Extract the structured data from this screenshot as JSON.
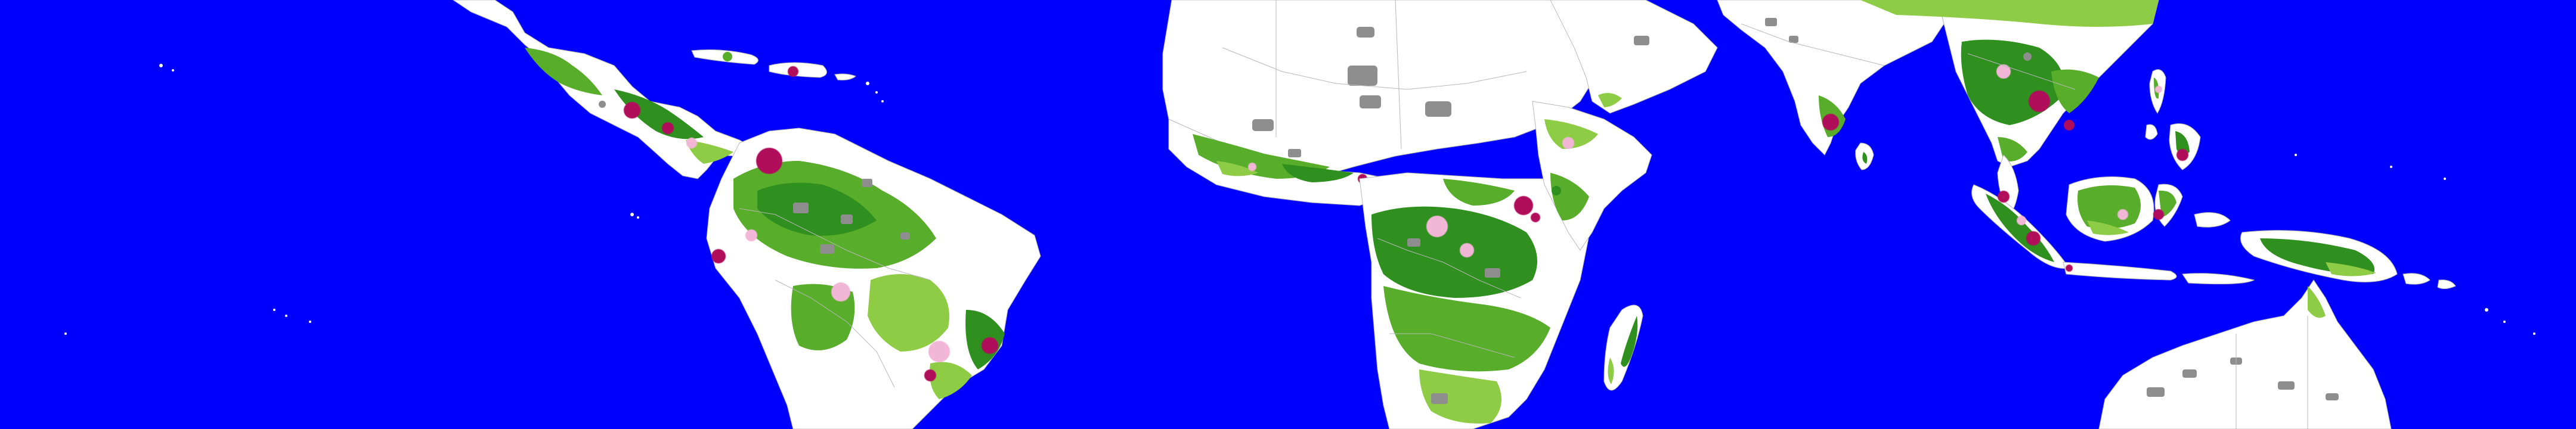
{
  "map": {
    "projection": "equirectangular-tropics-crop",
    "colors": {
      "ocean": "#0000ff",
      "land_nonforest": "#ffffff",
      "forest_dark": "#2f8f1f",
      "forest_mid": "#58ad2a",
      "forest_light": "#8fcc45",
      "deforestation_magenta": "#b0105a",
      "degradation_pink": "#f2b6d6",
      "other_gray": "#8e8e8e",
      "border_gray": "#b7b7b7"
    },
    "land_masses": [
      "central-america",
      "caribbean",
      "south-america",
      "north-africa",
      "west-africa",
      "central-africa",
      "east-africa",
      "madagascar",
      "arabian-peninsula",
      "south-asia",
      "sri-lanka",
      "southeast-asia",
      "philippines",
      "indonesia",
      "new-guinea",
      "australia"
    ]
  }
}
